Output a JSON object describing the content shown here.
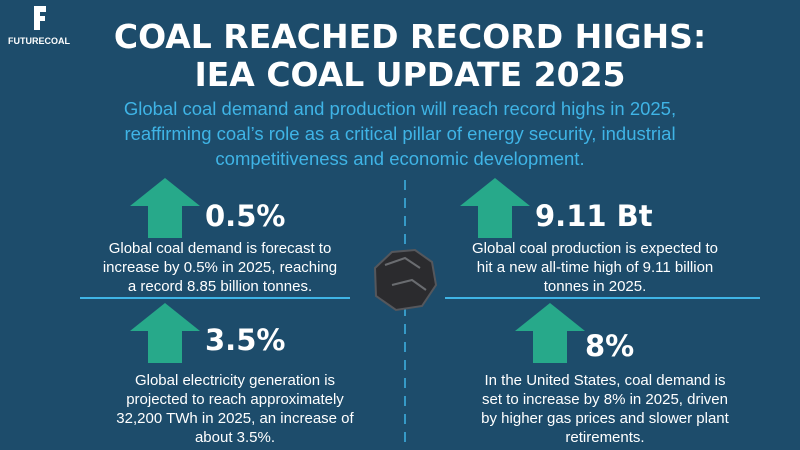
{
  "logo": {
    "name": "FUTURECOAL"
  },
  "header": {
    "title": [
      "COAL REACHED RECORD HIGHS:",
      "IEA COAL UPDATE 2025"
    ],
    "subtitle": [
      "Global coal demand and production will reach record highs in 2025,",
      "reaffirming coal’s role as a critical pillar of energy security, industrial",
      "competitiveness and economic development."
    ]
  },
  "stats": [
    {
      "value": "0.5%",
      "text": [
        "Global coal demand is forecast to",
        "increase by 0.5% in 2025, reaching",
        "a record 8.85 billion tonnes."
      ]
    },
    {
      "value": "9.11 Bt",
      "text": [
        "Global coal production is expected to",
        "hit a new all-time high of 9.11 billion",
        "tonnes in 2025."
      ]
    },
    {
      "value": "3.5%",
      "text": [
        "Global electricity generation is",
        "projected to reach approximately",
        "32,200 TWh in 2025, an increase of",
        "about 3.5%."
      ]
    },
    {
      "value": "8%",
      "text": [
        "In the United States, coal demand is",
        "set to increase by 8% in 2025, driven",
        "by higher gas prices and slower plant",
        "retirements."
      ]
    }
  ]
}
